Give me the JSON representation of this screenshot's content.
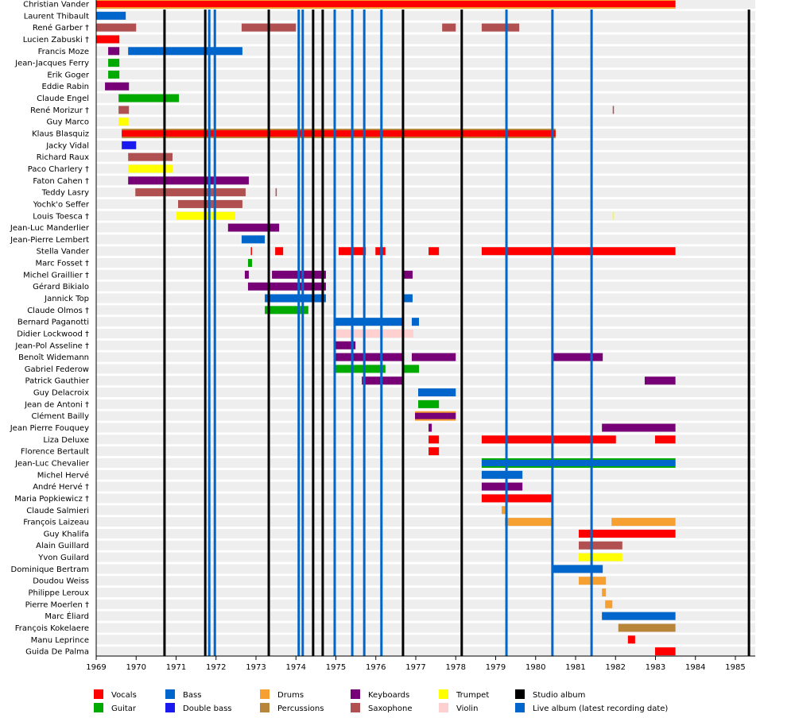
{
  "chart_data": {
    "type": "timeline",
    "xlim": [
      1969,
      1985.5
    ],
    "x_ticks": [
      "1969",
      "1970",
      "1971",
      "1972",
      "1973",
      "1974",
      "1975",
      "1976",
      "1977",
      "1978",
      "1979",
      "1980",
      "1981",
      "1982",
      "1983",
      "1984",
      "1985"
    ],
    "colors": {
      "Vocals": "#ff0000",
      "Guitar": "#00aa00",
      "Bass": "#0066cc",
      "Double bass": "#1a1aee",
      "Drums": "#f5a030",
      "Percussions": "#b8863b",
      "Keyboards": "#770077",
      "Saxophone": "#b05050",
      "Trumpet": "#ffff00",
      "Violin": "#ffd0d0",
      "Studio album": "#000000",
      "Live album (latest recording date)": "#0066cc"
    },
    "legend": [
      [
        "Vocals",
        "Guitar"
      ],
      [
        "Bass",
        "Double bass"
      ],
      [
        "Drums",
        "Percussions"
      ],
      [
        "Keyboards",
        "Saxophone"
      ],
      [
        "Trumpet",
        "Violin"
      ],
      [
        "Studio album",
        "Live album (latest recording date)"
      ]
    ],
    "studio_albums": [
      1970.71,
      1971.73,
      1973.32,
      1974.43,
      1974.67,
      1976.68,
      1978.15,
      1985.34
    ],
    "live_albums": [
      1971.83,
      1971.97,
      1974.07,
      1974.17,
      1974.97,
      1975.41,
      1975.71,
      1976.14,
      1979.27,
      1980.42,
      1981.4
    ],
    "members": [
      {
        "name": "Christian Vander",
        "bars": [
          [
            1969,
            1983.5,
            "Vocals",
            "Drums"
          ]
        ]
      },
      {
        "name": "Laurent Thibault",
        "bars": [
          [
            1969,
            1969.74,
            "Bass"
          ]
        ]
      },
      {
        "name": "René Garber †",
        "bars": [
          [
            1969,
            1970.0,
            "Saxophone"
          ],
          [
            1972.64,
            1974.0,
            "Saxophone"
          ],
          [
            1977.66,
            1978.0,
            "Saxophone"
          ],
          [
            1978.65,
            1979.59,
            "Saxophone"
          ]
        ]
      },
      {
        "name": "Lucien Zabuski †",
        "bars": [
          [
            1969,
            1969.58,
            "Vocals"
          ]
        ]
      },
      {
        "name": "Francis Moze",
        "bars": [
          [
            1969.3,
            1969.58,
            "Keyboards"
          ],
          [
            1969.8,
            1972.66,
            "Bass"
          ]
        ]
      },
      {
        "name": "Jean-Jacques Ferry",
        "bars": [
          [
            1969.3,
            1969.58,
            "Guitar"
          ]
        ]
      },
      {
        "name": "Erik Goger",
        "bars": [
          [
            1969.3,
            1969.58,
            "Guitar"
          ]
        ]
      },
      {
        "name": "Eddie Rabin",
        "bars": [
          [
            1969.22,
            1969.82,
            "Keyboards"
          ]
        ]
      },
      {
        "name": "Claude Engel",
        "bars": [
          [
            1969.56,
            1971.07,
            "Guitar"
          ],
          [
            1980.4,
            1980.43,
            "Guitar"
          ]
        ]
      },
      {
        "name": "René Morizur †",
        "bars": [
          [
            1969.56,
            1969.82,
            "Saxophone"
          ],
          [
            1981.93,
            1981.96,
            "Saxophone"
          ]
        ]
      },
      {
        "name": "Guy Marco",
        "bars": [
          [
            1969.56,
            1969.82,
            "Trumpet"
          ]
        ]
      },
      {
        "name": "Klaus Blasquiz",
        "bars": [
          [
            1969.64,
            1980.5,
            "Vocals",
            "Percussions"
          ]
        ]
      },
      {
        "name": "Jacky Vidal",
        "bars": [
          [
            1969.64,
            1970.0,
            "Double bass"
          ]
        ]
      },
      {
        "name": "Richard Raux",
        "bars": [
          [
            1969.8,
            1970.91,
            "Saxophone"
          ]
        ]
      },
      {
        "name": "Paco Charlery †",
        "bars": [
          [
            1969.8,
            1970.91,
            "Trumpet"
          ]
        ]
      },
      {
        "name": "Faton Cahen †",
        "bars": [
          [
            1969.8,
            1972.82,
            "Keyboards"
          ],
          [
            1980.4,
            1980.43,
            "Keyboards"
          ]
        ]
      },
      {
        "name": "Teddy Lasry",
        "bars": [
          [
            1969.98,
            1972.74,
            "Saxophone"
          ],
          [
            1973.49,
            1973.52,
            "Saxophone"
          ]
        ]
      },
      {
        "name": "Yochk'o Seffer",
        "bars": [
          [
            1971.05,
            1972.66,
            "Saxophone"
          ]
        ]
      },
      {
        "name": "Louis Toesca †",
        "bars": [
          [
            1971.01,
            1972.48,
            "Trumpet"
          ],
          [
            1980.4,
            1980.43,
            "Trumpet"
          ],
          [
            1981.93,
            1981.96,
            "Trumpet"
          ]
        ]
      },
      {
        "name": "Jean-Luc Manderlier",
        "bars": [
          [
            1972.3,
            1973.58,
            "Keyboards"
          ]
        ]
      },
      {
        "name": "Jean-Pierre Lembert",
        "bars": [
          [
            1972.64,
            1973.22,
            "Bass"
          ]
        ]
      },
      {
        "name": "Stella Vander",
        "bars": [
          [
            1972.87,
            1972.9,
            "Vocals"
          ],
          [
            1973.48,
            1973.68,
            "Vocals"
          ],
          [
            1975.07,
            1975.75,
            "Vocals"
          ],
          [
            1975.99,
            1976.24,
            "Vocals"
          ],
          [
            1977.32,
            1977.58,
            "Vocals"
          ],
          [
            1978.65,
            1983.5,
            "Vocals"
          ]
        ]
      },
      {
        "name": "Marc Fosset †",
        "bars": [
          [
            1972.8,
            1972.9,
            "Guitar"
          ]
        ]
      },
      {
        "name": "Michel Graillier †",
        "bars": [
          [
            1972.72,
            1972.82,
            "Keyboards"
          ],
          [
            1973.4,
            1974.75,
            "Keyboards"
          ],
          [
            1976.7,
            1976.92,
            "Keyboards"
          ]
        ]
      },
      {
        "name": "Gérard Bikialo",
        "bars": [
          [
            1972.8,
            1974.75,
            "Keyboards"
          ]
        ]
      },
      {
        "name": "Jannick Top",
        "bars": [
          [
            1973.22,
            1974.75,
            "Bass"
          ],
          [
            1976.7,
            1976.92,
            "Bass"
          ]
        ]
      },
      {
        "name": "Claude Olmos †",
        "bars": [
          [
            1973.22,
            1974.31,
            "Guitar"
          ]
        ]
      },
      {
        "name": "Bernard Paganotti",
        "bars": [
          [
            1974.97,
            1976.68,
            "Bass"
          ],
          [
            1976.9,
            1977.08,
            "Bass"
          ]
        ]
      },
      {
        "name": "Didier Lockwood †",
        "bars": [
          [
            1974.97,
            1976.94,
            "Violin"
          ],
          [
            1980.4,
            1980.43,
            "Violin"
          ]
        ]
      },
      {
        "name": "Jean-Pol Asseline †",
        "bars": [
          [
            1974.97,
            1975.49,
            "Keyboards"
          ]
        ]
      },
      {
        "name": "Benoît Widemann",
        "bars": [
          [
            1974.97,
            1976.68,
            "Keyboards"
          ],
          [
            1976.9,
            1978.0,
            "Keyboards"
          ],
          [
            1980.42,
            1981.68,
            "Keyboards"
          ]
        ]
      },
      {
        "name": "Gabriel Federow",
        "bars": [
          [
            1974.97,
            1976.24,
            "Guitar"
          ],
          [
            1976.7,
            1977.08,
            "Guitar"
          ],
          [
            1980.4,
            1980.43,
            "Guitar"
          ]
        ]
      },
      {
        "name": "Patrick Gauthier",
        "bars": [
          [
            1975.65,
            1976.68,
            "Keyboards"
          ],
          [
            1980.4,
            1980.43,
            "Keyboards"
          ],
          [
            1982.73,
            1983.5,
            "Keyboards"
          ]
        ]
      },
      {
        "name": "Guy Delacroix",
        "bars": [
          [
            1977.06,
            1978.0,
            "Bass"
          ]
        ]
      },
      {
        "name": "Jean de Antoni †",
        "bars": [
          [
            1977.06,
            1977.58,
            "Guitar"
          ]
        ]
      },
      {
        "name": "Clément Bailly",
        "bars": [
          [
            1976.98,
            1978.0,
            "Keyboards",
            "Drums"
          ]
        ]
      },
      {
        "name": "Jean Pierre Fouquey",
        "bars": [
          [
            1977.32,
            1977.4,
            "Keyboards"
          ],
          [
            1980.4,
            1980.43,
            "Keyboards"
          ],
          [
            1981.66,
            1983.5,
            "Keyboards"
          ]
        ]
      },
      {
        "name": "Liza Deluxe",
        "bars": [
          [
            1977.32,
            1977.58,
            "Vocals"
          ],
          [
            1978.65,
            1982.01,
            "Vocals"
          ],
          [
            1982.99,
            1983.5,
            "Vocals"
          ]
        ]
      },
      {
        "name": "Florence Bertault",
        "bars": [
          [
            1977.32,
            1977.58,
            "Vocals"
          ]
        ]
      },
      {
        "name": "Jean-Luc Chevalier",
        "bars": [
          [
            1978.65,
            1983.5,
            "Bass",
            "Guitar"
          ]
        ]
      },
      {
        "name": "Michel Hervé",
        "bars": [
          [
            1978.65,
            1979.67,
            "Bass"
          ]
        ]
      },
      {
        "name": "André Hervé †",
        "bars": [
          [
            1978.65,
            1979.67,
            "Keyboards"
          ]
        ]
      },
      {
        "name": "Maria Popkiewicz †",
        "bars": [
          [
            1978.65,
            1980.44,
            "Vocals"
          ]
        ]
      },
      {
        "name": "Claude Salmieri",
        "bars": [
          [
            1979.15,
            1979.25,
            "Drums"
          ]
        ]
      },
      {
        "name": "François Laizeau",
        "bars": [
          [
            1979.23,
            1980.44,
            "Drums"
          ],
          [
            1981.9,
            1983.5,
            "Drums"
          ]
        ]
      },
      {
        "name": "Guy Khalifa",
        "bars": [
          [
            1981.08,
            1983.5,
            "Vocals"
          ]
        ]
      },
      {
        "name": "Alain Guillard",
        "bars": [
          [
            1981.08,
            1982.17,
            "Saxophone"
          ]
        ]
      },
      {
        "name": "Yvon Guilard",
        "bars": [
          [
            1981.08,
            1982.17,
            "Trumpet"
          ]
        ]
      },
      {
        "name": "Dominique Bertram",
        "bars": [
          [
            1980.44,
            1981.68,
            "Bass"
          ]
        ]
      },
      {
        "name": "Doudou Weiss",
        "bars": [
          [
            1981.08,
            1981.76,
            "Drums"
          ]
        ]
      },
      {
        "name": "Philippe Leroux",
        "bars": [
          [
            1981.66,
            1981.76,
            "Drums"
          ]
        ]
      },
      {
        "name": "Pierre Moerlen †",
        "bars": [
          [
            1981.74,
            1981.92,
            "Drums"
          ]
        ]
      },
      {
        "name": "Marc Éliard",
        "bars": [
          [
            1981.66,
            1983.5,
            "Bass"
          ]
        ]
      },
      {
        "name": "François Kokelaere",
        "bars": [
          [
            1982.07,
            1983.5,
            "Percussions"
          ]
        ]
      },
      {
        "name": "Manu Leprince",
        "bars": [
          [
            1982.31,
            1982.49,
            "Vocals"
          ]
        ]
      },
      {
        "name": "Guida De Palma",
        "bars": [
          [
            1982.99,
            1983.5,
            "Vocals"
          ]
        ]
      }
    ]
  }
}
